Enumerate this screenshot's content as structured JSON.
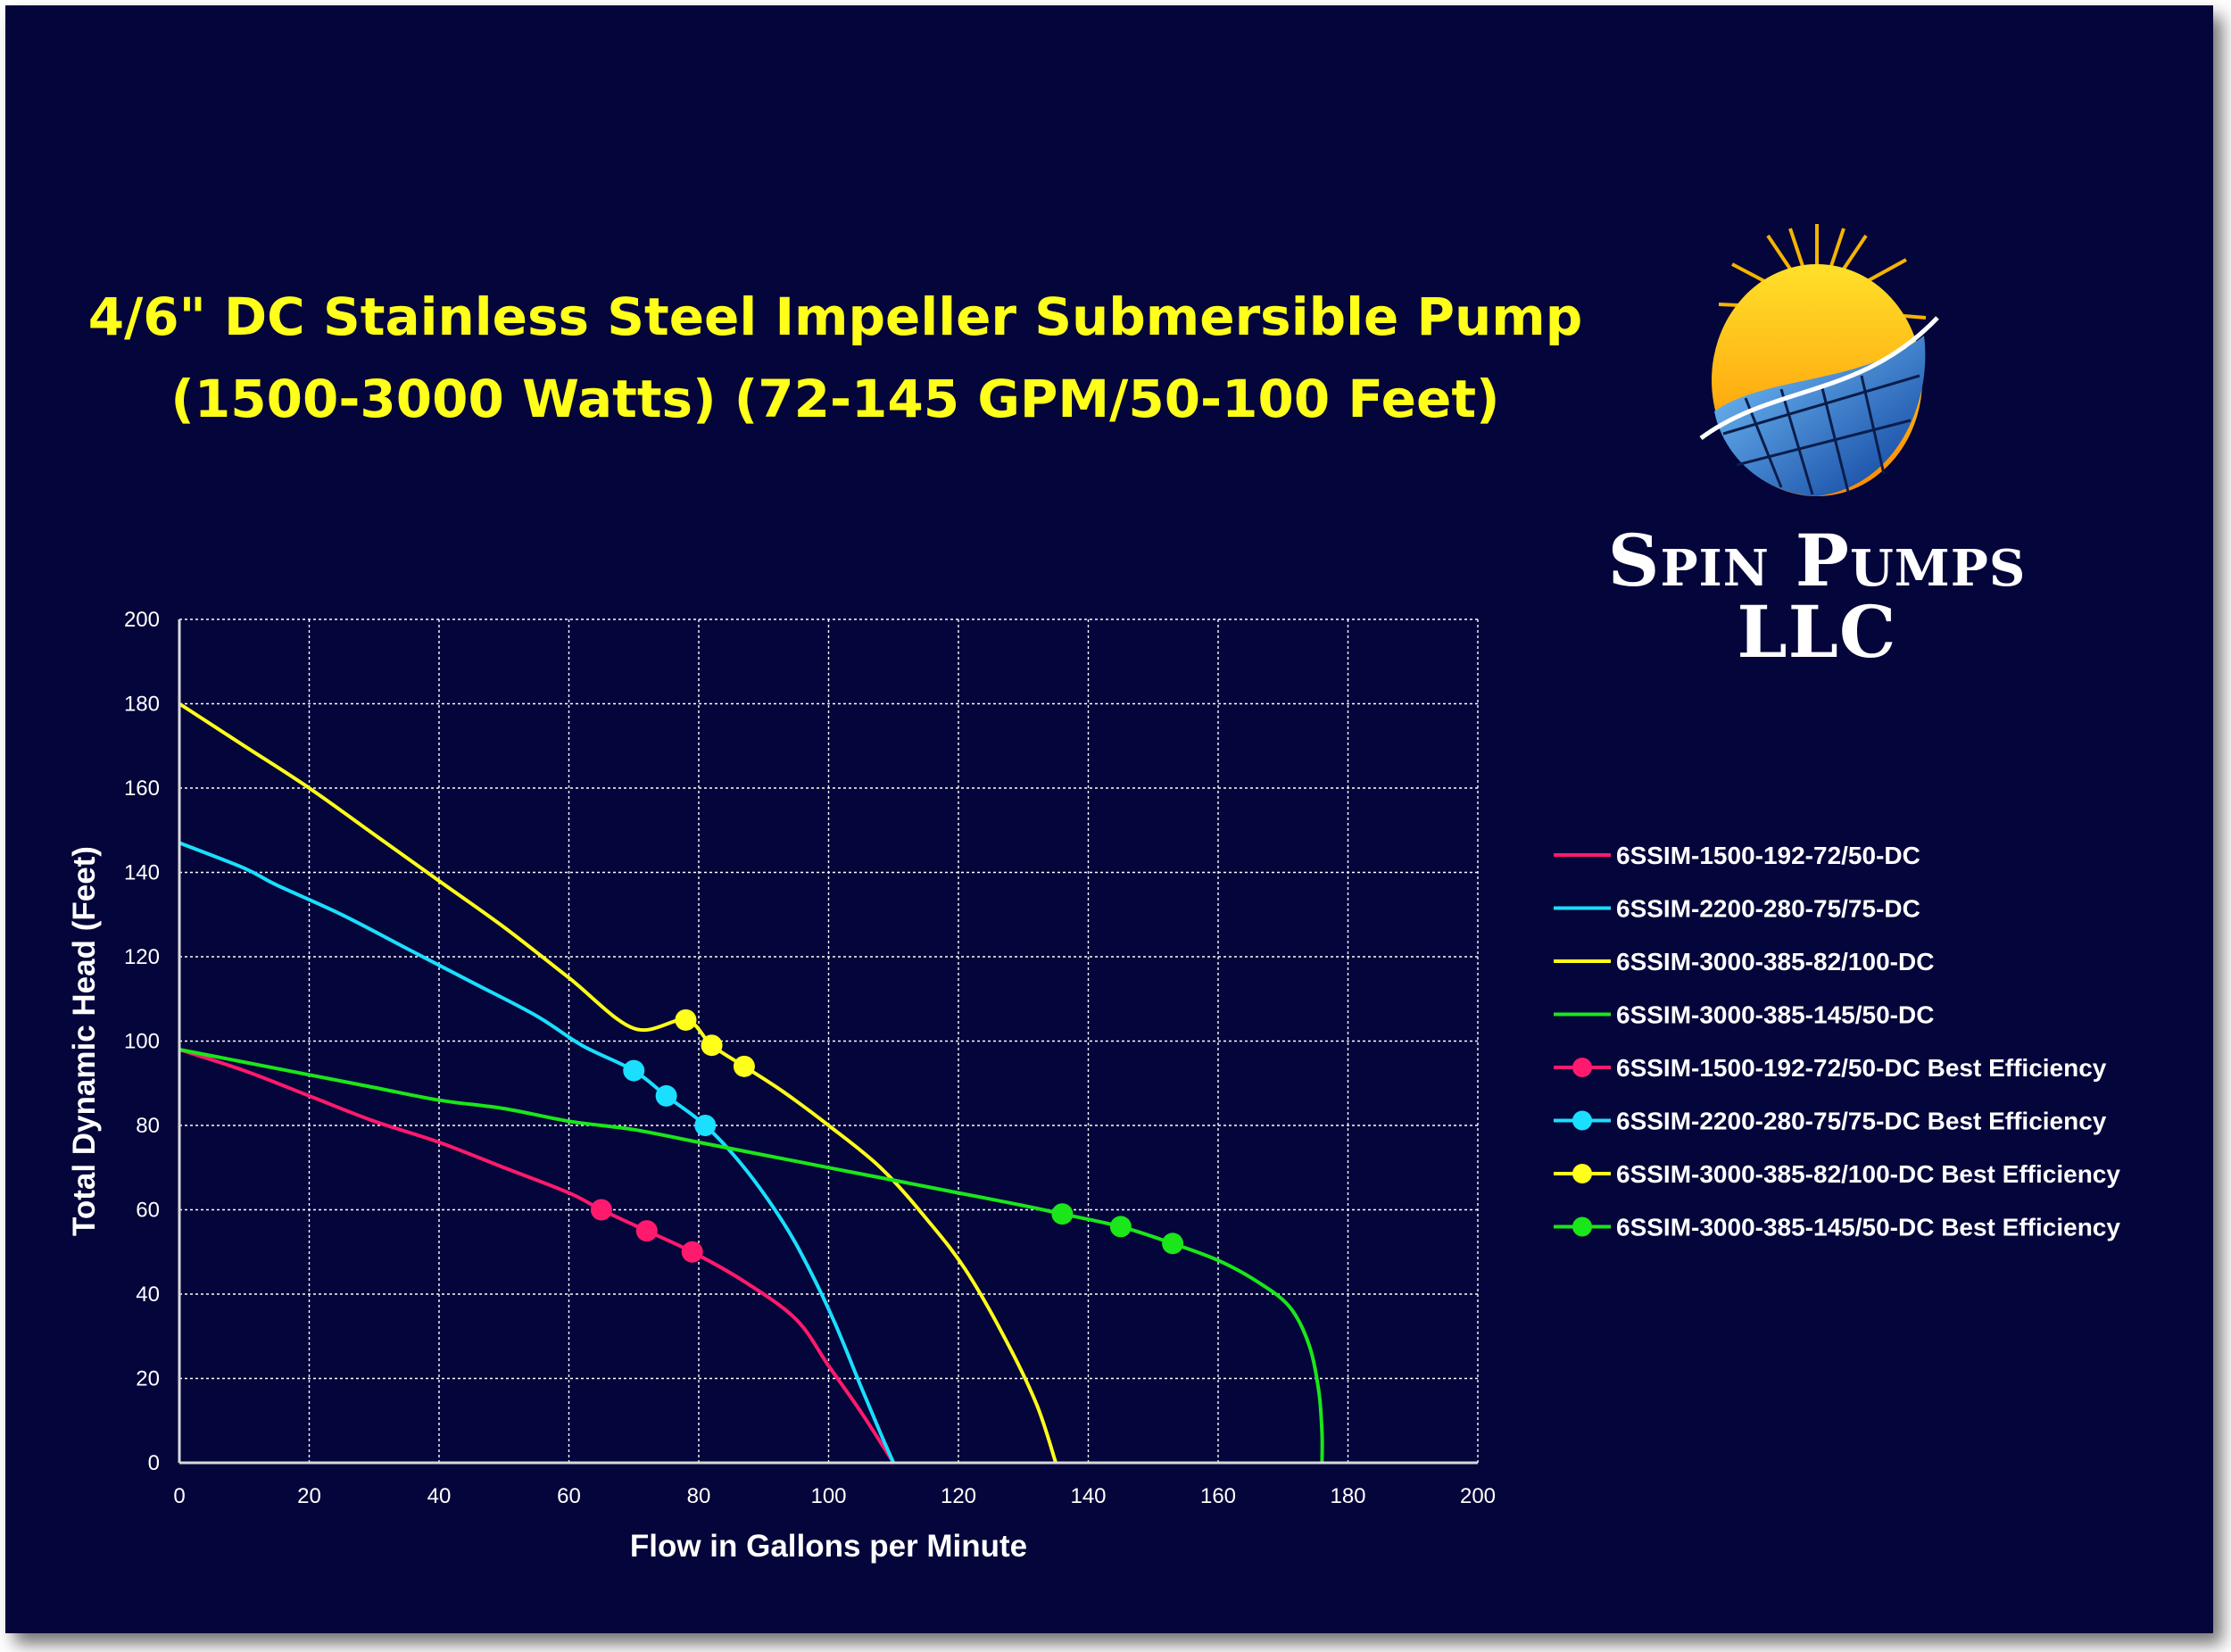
{
  "title_line1": "4/6\" DC Stainless Steel Impeller Submersible Pump",
  "title_line2": "(1500-3000 Watts) (72-145 GPM/50-100 Feet)",
  "brand": {
    "name": "Spin Pumps LLC",
    "logo": "sun-solar-panel-globe-logo"
  },
  "colors": {
    "background": "#04053a",
    "title": "#ffff1a",
    "grid": "#ffffff"
  },
  "chart_data": {
    "type": "line",
    "xlabel": "Flow in Gallons per Minute",
    "ylabel": "Total Dynamic Head (Feet)",
    "xlim": [
      0,
      200
    ],
    "ylim": [
      0,
      200
    ],
    "xticks": [
      0,
      20,
      40,
      60,
      80,
      100,
      120,
      140,
      160,
      180,
      200
    ],
    "yticks": [
      0,
      20,
      40,
      60,
      80,
      100,
      120,
      140,
      160,
      180,
      200
    ],
    "grid": true,
    "legend_position": "right",
    "series": [
      {
        "name": "6SSIM-1500-192-72/50-DC",
        "color": "#ff1a6e",
        "kind": "line",
        "points": [
          [
            0,
            98
          ],
          [
            10,
            93
          ],
          [
            20,
            87
          ],
          [
            30,
            81
          ],
          [
            40,
            76
          ],
          [
            50,
            70
          ],
          [
            60,
            64
          ],
          [
            65,
            60
          ],
          [
            72,
            55
          ],
          [
            79,
            50
          ],
          [
            87,
            43
          ],
          [
            95,
            34
          ],
          [
            100,
            23
          ],
          [
            105,
            12
          ],
          [
            110,
            0
          ]
        ]
      },
      {
        "name": "6SSIM-2200-280-75/75-DC",
        "color": "#1adfff",
        "kind": "line",
        "points": [
          [
            0,
            147
          ],
          [
            10,
            141
          ],
          [
            15,
            137
          ],
          [
            25,
            130
          ],
          [
            35,
            122
          ],
          [
            45,
            114
          ],
          [
            55,
            106
          ],
          [
            62,
            99
          ],
          [
            70,
            93
          ],
          [
            75,
            87
          ],
          [
            81,
            80
          ],
          [
            87,
            70
          ],
          [
            93,
            57
          ],
          [
            97,
            46
          ],
          [
            101,
            33
          ],
          [
            105,
            18
          ],
          [
            108,
            7
          ],
          [
            110,
            0
          ]
        ]
      },
      {
        "name": "6SSIM-3000-385-82/100-DC",
        "color": "#ffff1a",
        "kind": "line",
        "points": [
          [
            0,
            180
          ],
          [
            10,
            170
          ],
          [
            20,
            160
          ],
          [
            30,
            149
          ],
          [
            40,
            138
          ],
          [
            50,
            127
          ],
          [
            60,
            115
          ],
          [
            70,
            103
          ],
          [
            78,
            105
          ],
          [
            82,
            99
          ],
          [
            87,
            94
          ],
          [
            93,
            88
          ],
          [
            100,
            80
          ],
          [
            108,
            70
          ],
          [
            115,
            58
          ],
          [
            121,
            46
          ],
          [
            127,
            30
          ],
          [
            132,
            14
          ],
          [
            135,
            0
          ]
        ]
      },
      {
        "name": "6SSIM-3000-385-145/50-DC",
        "color": "#1ae61a",
        "kind": "line",
        "points": [
          [
            0,
            98
          ],
          [
            10,
            95
          ],
          [
            20,
            92
          ],
          [
            30,
            89
          ],
          [
            40,
            86
          ],
          [
            50,
            84
          ],
          [
            60,
            81
          ],
          [
            70,
            79
          ],
          [
            80,
            76
          ],
          [
            90,
            73
          ],
          [
            100,
            70
          ],
          [
            110,
            67
          ],
          [
            120,
            64
          ],
          [
            130,
            61
          ],
          [
            136,
            59
          ],
          [
            145,
            56
          ],
          [
            153,
            52
          ],
          [
            160,
            48
          ],
          [
            166,
            43
          ],
          [
            171,
            37
          ],
          [
            174,
            28
          ],
          [
            175.5,
            17
          ],
          [
            176,
            7
          ],
          [
            176,
            0
          ]
        ]
      },
      {
        "name": "6SSIM-1500-192-72/50-DC Best Efficiency",
        "color": "#ff1a6e",
        "kind": "points",
        "points": [
          [
            65,
            60
          ],
          [
            72,
            55
          ],
          [
            79,
            50
          ]
        ]
      },
      {
        "name": "6SSIM-2200-280-75/75-DC Best Efficiency",
        "color": "#1adfff",
        "kind": "points",
        "points": [
          [
            70,
            93
          ],
          [
            75,
            87
          ],
          [
            81,
            80
          ]
        ]
      },
      {
        "name": "6SSIM-3000-385-82/100-DC Best Efficiency",
        "color": "#ffff1a",
        "kind": "points",
        "points": [
          [
            78,
            105
          ],
          [
            82,
            99
          ],
          [
            87,
            94
          ]
        ]
      },
      {
        "name": "6SSIM-3000-385-145/50-DC Best Efficiency",
        "color": "#1ae61a",
        "kind": "points",
        "points": [
          [
            136,
            59
          ],
          [
            145,
            56
          ],
          [
            153,
            52
          ]
        ]
      }
    ]
  }
}
